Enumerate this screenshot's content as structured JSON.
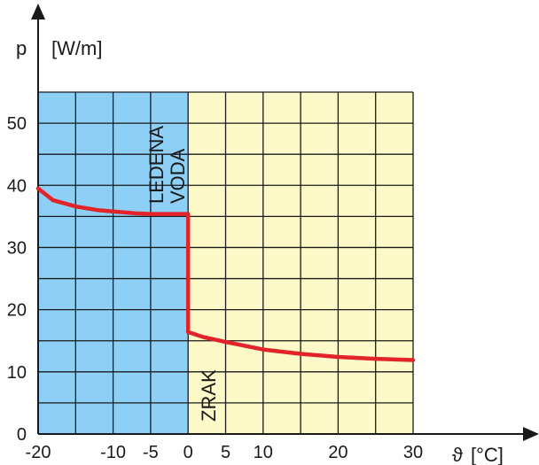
{
  "chart_data": {
    "type": "line",
    "ylabel": "p",
    "yunit": "[W/m]",
    "xlabel": "ϑ",
    "xunit": "[°C]",
    "xlim": [
      -20,
      30
    ],
    "ylim": [
      0,
      55
    ],
    "x_ticks": [
      -20,
      -10,
      -5,
      0,
      5,
      10,
      20,
      30
    ],
    "y_ticks": [
      0,
      10,
      20,
      30,
      40,
      50
    ],
    "regions": [
      {
        "label_lines": [
          "LEDENA",
          "VODA"
        ],
        "x_from": -20,
        "x_to": 0,
        "color": "#8ecff5"
      },
      {
        "label_lines": [
          "ZRAK"
        ],
        "x_from": 0,
        "x_to": 30,
        "color": "#fdf9c8"
      }
    ],
    "series": [
      {
        "color": "#e2232a",
        "points": [
          [
            -20,
            39.5
          ],
          [
            -18,
            37.6
          ],
          [
            -15,
            36.6
          ],
          [
            -12,
            36.0
          ],
          [
            -10,
            35.8
          ],
          [
            -7,
            35.5
          ],
          [
            -5,
            35.4
          ],
          [
            0,
            35.4
          ],
          [
            0,
            16.4
          ],
          [
            2,
            15.6
          ],
          [
            5,
            14.8
          ],
          [
            10,
            13.6
          ],
          [
            15,
            12.9
          ],
          [
            20,
            12.4
          ],
          [
            25,
            12.1
          ],
          [
            30,
            11.9
          ]
        ]
      }
    ]
  },
  "colors": {
    "grid": "#1a1a1a",
    "axis": "#1a1a1a"
  }
}
